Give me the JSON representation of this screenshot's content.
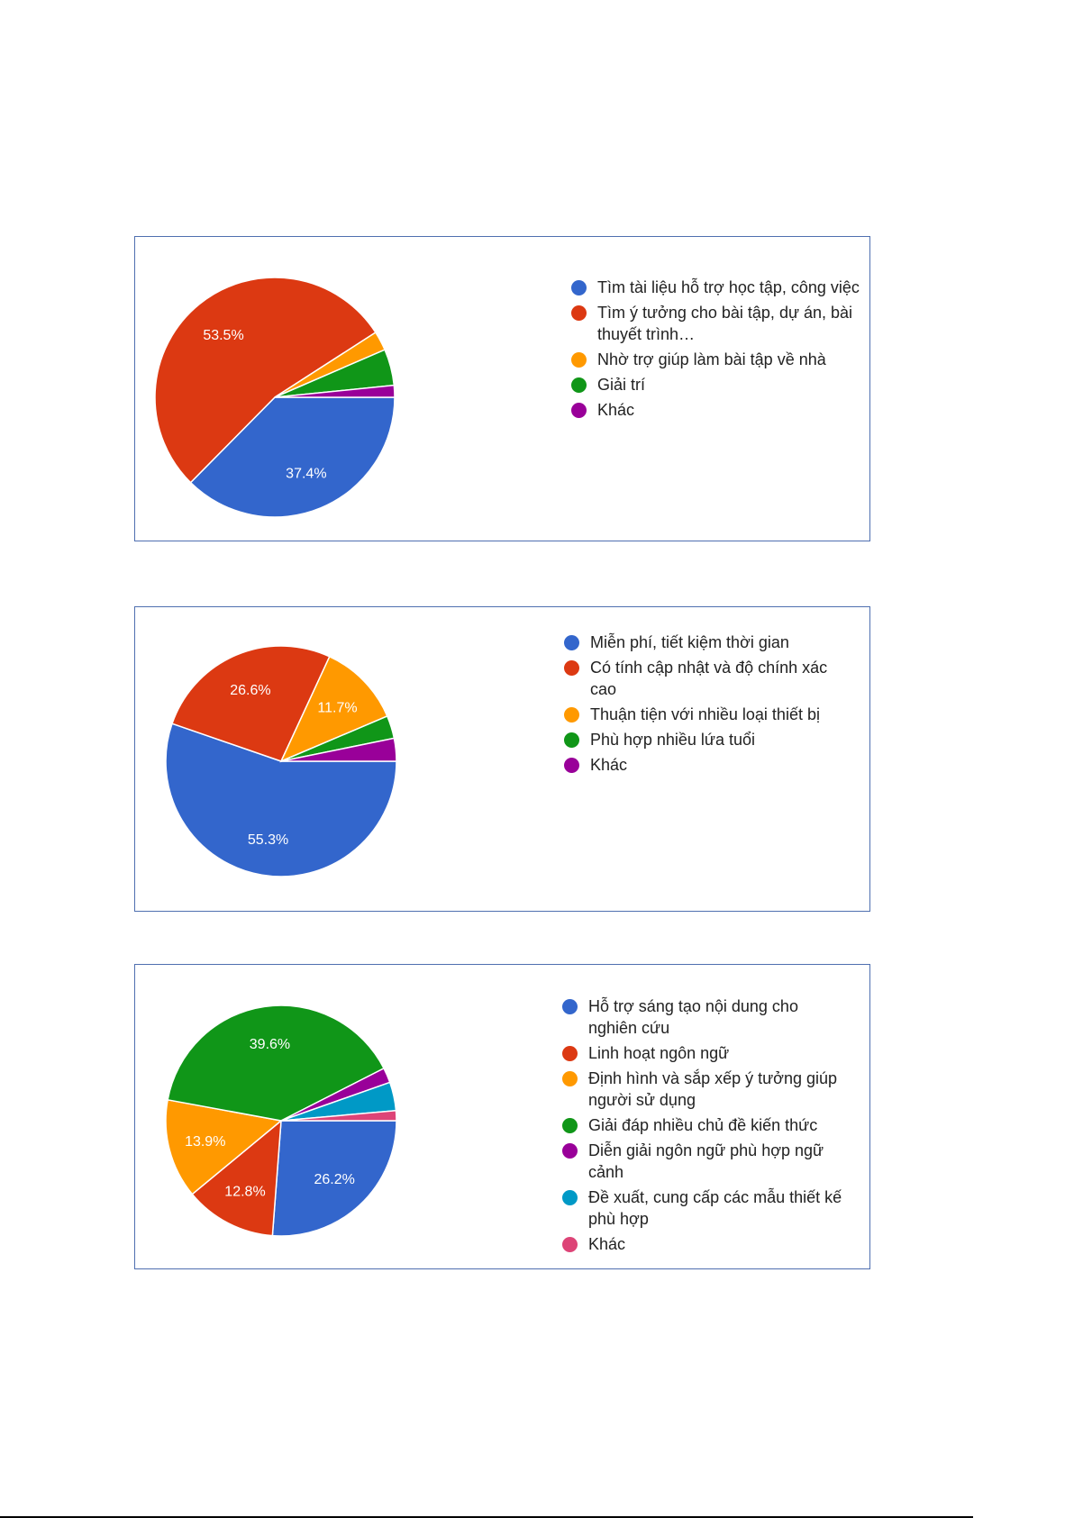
{
  "chart_data": [
    {
      "type": "pie",
      "title": "",
      "slices": [
        {
          "label": "Tìm tài liệu hỗ trợ học tập, công việc",
          "value": 37.4,
          "color": "#3366cc",
          "data_label": "37.4%"
        },
        {
          "label": "Tìm ý tưởng cho bài tập, dự án, bài thuyết trình…",
          "value": 53.5,
          "color": "#dc3912",
          "data_label": "53.5%"
        },
        {
          "label": "Nhờ trợ giúp làm bài tập về nhà",
          "value": 2.6,
          "color": "#ff9900",
          "data_label": ""
        },
        {
          "label": "Giải trí",
          "value": 4.9,
          "color": "#109618",
          "data_label": ""
        },
        {
          "label": "Khác",
          "value": 1.6,
          "color": "#990099",
          "data_label": ""
        }
      ],
      "legend_position": "right"
    },
    {
      "type": "pie",
      "title": "",
      "slices": [
        {
          "label": "Miễn phí, tiết kiệm thời gian",
          "value": 55.3,
          "color": "#3366cc",
          "data_label": "55.3%"
        },
        {
          "label": "Có tính cập nhật và độ chính xác cao",
          "value": 26.6,
          "color": "#dc3912",
          "data_label": "26.6%"
        },
        {
          "label": "Thuận tiện với nhiều loại thiết bị",
          "value": 11.7,
          "color": "#ff9900",
          "data_label": "11.7%"
        },
        {
          "label": "Phù hợp nhiều lứa tuổi",
          "value": 3.2,
          "color": "#109618",
          "data_label": ""
        },
        {
          "label": "Khác",
          "value": 3.2,
          "color": "#990099",
          "data_label": ""
        }
      ],
      "legend_position": "right"
    },
    {
      "type": "pie",
      "title": "",
      "slices": [
        {
          "label": "Hỗ trợ sáng tạo nội dung cho nghiên cứu",
          "value": 26.2,
          "color": "#3366cc",
          "data_label": "26.2%"
        },
        {
          "label": "Linh hoạt ngôn ngữ",
          "value": 12.8,
          "color": "#dc3912",
          "data_label": "12.8%"
        },
        {
          "label": "Định hình và sắp xếp ý tưởng giúp người sử dụng",
          "value": 13.9,
          "color": "#ff9900",
          "data_label": "13.9%"
        },
        {
          "label": "Giải đáp nhiều chủ đề kiến thức",
          "value": 39.6,
          "color": "#109618",
          "data_label": "39.6%"
        },
        {
          "label": "Diễn giải ngôn ngữ phù hợp ngữ cảnh",
          "value": 2.1,
          "color": "#990099",
          "data_label": ""
        },
        {
          "label": "Đề xuất, cung cấp các mẫu thiết kế phù hợp",
          "value": 4.0,
          "color": "#0099c6",
          "data_label": ""
        },
        {
          "label": "Khác",
          "value": 1.4,
          "color": "#dd4477",
          "data_label": ""
        }
      ],
      "legend_position": "right"
    }
  ]
}
